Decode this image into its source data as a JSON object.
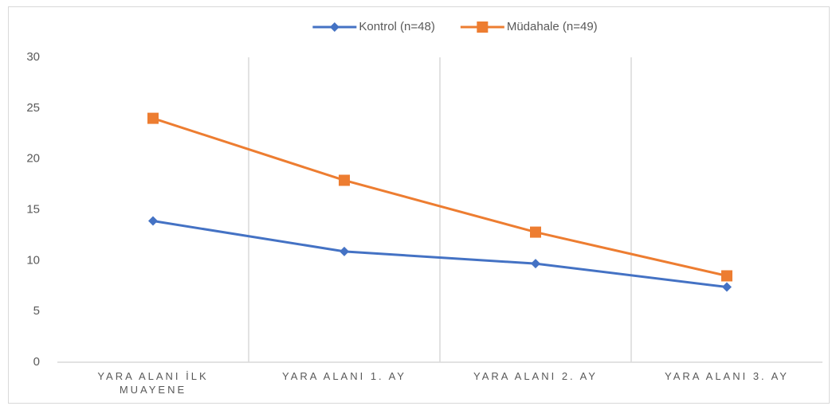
{
  "chart_data": {
    "type": "line",
    "categories": [
      "YARA ALANI İLK MUAYENE",
      "YARA ALANI 1. AY",
      "YARA ALANI 2. AY",
      "YARA ALANI 3. AY"
    ],
    "series": [
      {
        "name": "Kontrol (n=48)",
        "color": "#4472c4",
        "marker": "diamond",
        "values": [
          13.9,
          10.9,
          9.7,
          7.4
        ]
      },
      {
        "name": "Müdahale (n=49)",
        "color": "#ed7d31",
        "marker": "square",
        "values": [
          24.0,
          17.9,
          12.8,
          8.5
        ]
      }
    ],
    "ylim": [
      0,
      30
    ],
    "yticks": [
      0,
      5,
      10,
      15,
      20,
      25,
      30
    ],
    "grid": "x",
    "legend": "top"
  }
}
